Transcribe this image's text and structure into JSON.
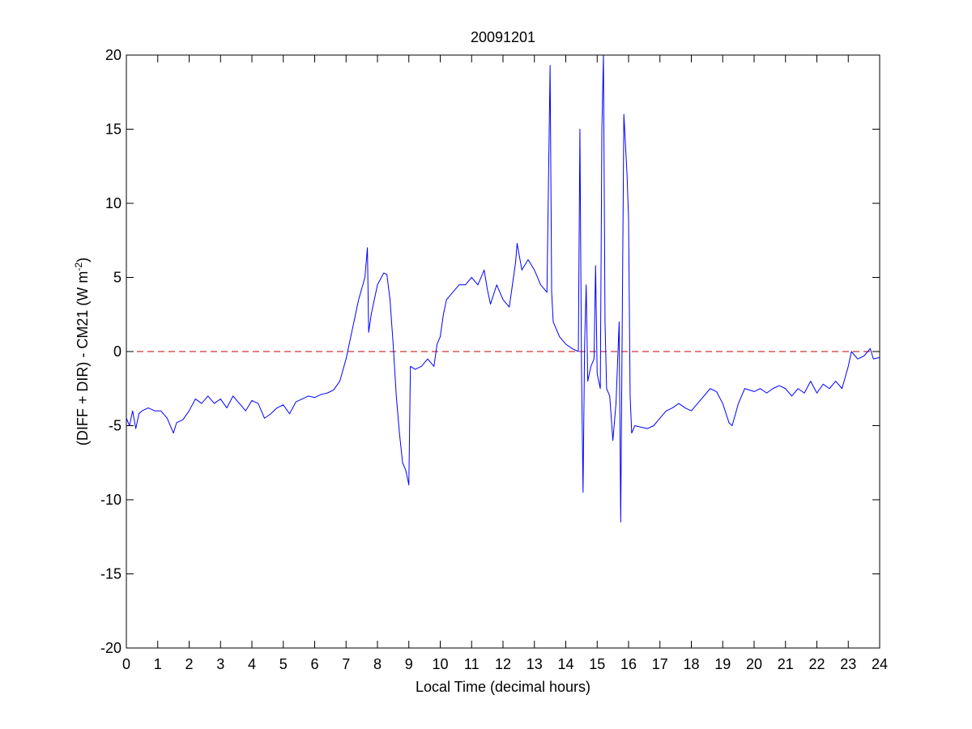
{
  "chart_data": {
    "type": "line",
    "title": "20091201",
    "xlabel": "Local Time (decimal hours)",
    "ylabel": [
      "(DIFF + DIR) - CM21 (W m",
      "-2",
      ")"
    ],
    "color": "#0000ff",
    "x": [
      0,
      0.1,
      0.2,
      0.3,
      0.4,
      0.5,
      0.7,
      0.9,
      1.1,
      1.3,
      1.5,
      1.6,
      1.8,
      2.0,
      2.2,
      2.4,
      2.6,
      2.8,
      3.0,
      3.2,
      3.4,
      3.6,
      3.8,
      4.0,
      4.2,
      4.4,
      4.6,
      4.8,
      5.0,
      5.2,
      5.4,
      5.6,
      5.8,
      6.0,
      6.2,
      6.4,
      6.6,
      6.8,
      7.0,
      7.2,
      7.4,
      7.6,
      7.68,
      7.72,
      7.8,
      8.0,
      8.2,
      8.3,
      8.4,
      8.5,
      8.6,
      8.7,
      8.8,
      8.9,
      9.0,
      9.05,
      9.2,
      9.4,
      9.6,
      9.8,
      9.9,
      10.0,
      10.1,
      10.2,
      10.4,
      10.6,
      10.8,
      11.0,
      11.2,
      11.4,
      11.5,
      11.6,
      11.8,
      12.0,
      12.2,
      12.4,
      12.45,
      12.6,
      12.8,
      13.0,
      13.2,
      13.4,
      13.5,
      13.55,
      13.6,
      13.8,
      14.0,
      14.2,
      14.4,
      14.45,
      14.5,
      14.55,
      14.6,
      14.65,
      14.7,
      14.8,
      14.9,
      14.95,
      15.0,
      15.1,
      15.15,
      15.2,
      15.25,
      15.3,
      15.4,
      15.5,
      15.6,
      15.7,
      15.75,
      15.85,
      15.95,
      16.0,
      16.05,
      16.1,
      16.2,
      16.4,
      16.6,
      16.8,
      17.0,
      17.2,
      17.4,
      17.6,
      17.8,
      18.0,
      18.2,
      18.4,
      18.6,
      18.8,
      19.0,
      19.2,
      19.3,
      19.5,
      19.7,
      20.0,
      20.2,
      20.4,
      20.6,
      20.8,
      21.0,
      21.2,
      21.4,
      21.6,
      21.8,
      22.0,
      22.2,
      22.4,
      22.6,
      22.8,
      23.0,
      23.1,
      23.3,
      23.5,
      23.7,
      23.8,
      24.0
    ],
    "values": [
      -4.5,
      -5.0,
      -4.0,
      -5.2,
      -4.2,
      -4.0,
      -3.8,
      -4.0,
      -4.0,
      -4.5,
      -5.5,
      -4.8,
      -4.6,
      -4.0,
      -3.2,
      -3.5,
      -3.0,
      -3.5,
      -3.2,
      -3.8,
      -3.0,
      -3.5,
      -4.0,
      -3.3,
      -3.5,
      -4.5,
      -4.2,
      -3.8,
      -3.6,
      -4.2,
      -3.4,
      -3.2,
      -3.0,
      -3.1,
      -2.9,
      -2.8,
      -2.6,
      -2.0,
      -0.5,
      1.5,
      3.5,
      5.0,
      7.0,
      1.3,
      2.5,
      4.5,
      5.3,
      5.2,
      3.5,
      0.5,
      -3.0,
      -5.5,
      -7.5,
      -8.0,
      -9.0,
      -1.0,
      -1.2,
      -1.0,
      -0.5,
      -1.0,
      0.5,
      1.0,
      2.5,
      3.5,
      4.0,
      4.5,
      4.5,
      5.0,
      4.5,
      5.5,
      4.2,
      3.2,
      4.5,
      3.5,
      3.0,
      6.0,
      7.3,
      5.5,
      6.2,
      5.5,
      4.5,
      4.0,
      19.3,
      4.0,
      2.0,
      1.0,
      0.5,
      0.2,
      0.0,
      15.0,
      -1.0,
      -9.5,
      0.5,
      4.5,
      -2.0,
      -1.0,
      -0.5,
      5.8,
      -1.5,
      -2.5,
      15.0,
      20.0,
      2.0,
      -2.5,
      -3.0,
      -6.0,
      -3.5,
      2.0,
      -11.5,
      16.0,
      12.0,
      9.0,
      -3.0,
      -5.5,
      -5.0,
      -5.1,
      -5.2,
      -5.0,
      -4.5,
      -4.0,
      -3.8,
      -3.5,
      -3.8,
      -4.0,
      -3.5,
      -3.0,
      -2.5,
      -2.7,
      -3.5,
      -4.8,
      -5.0,
      -3.5,
      -2.5,
      -2.7,
      -2.5,
      -2.8,
      -2.5,
      -2.3,
      -2.5,
      -3.0,
      -2.5,
      -2.8,
      -2.0,
      -2.8,
      -2.2,
      -2.5,
      -2.0,
      -2.5,
      -1.0,
      0.0,
      -0.5,
      -0.3,
      0.2,
      -0.5,
      -0.4
    ],
    "xlim": [
      0,
      24
    ],
    "xticks": [
      0,
      1,
      2,
      3,
      4,
      5,
      6,
      7,
      8,
      9,
      10,
      11,
      12,
      13,
      14,
      15,
      16,
      17,
      18,
      19,
      20,
      21,
      22,
      23,
      24
    ],
    "ylim": [
      -20,
      20
    ],
    "yticks": [
      -20,
      -15,
      -10,
      -5,
      0,
      5,
      10,
      15,
      20
    ],
    "grid": false,
    "hline": {
      "value": 0,
      "color": "#c00000",
      "dashed": true
    }
  }
}
